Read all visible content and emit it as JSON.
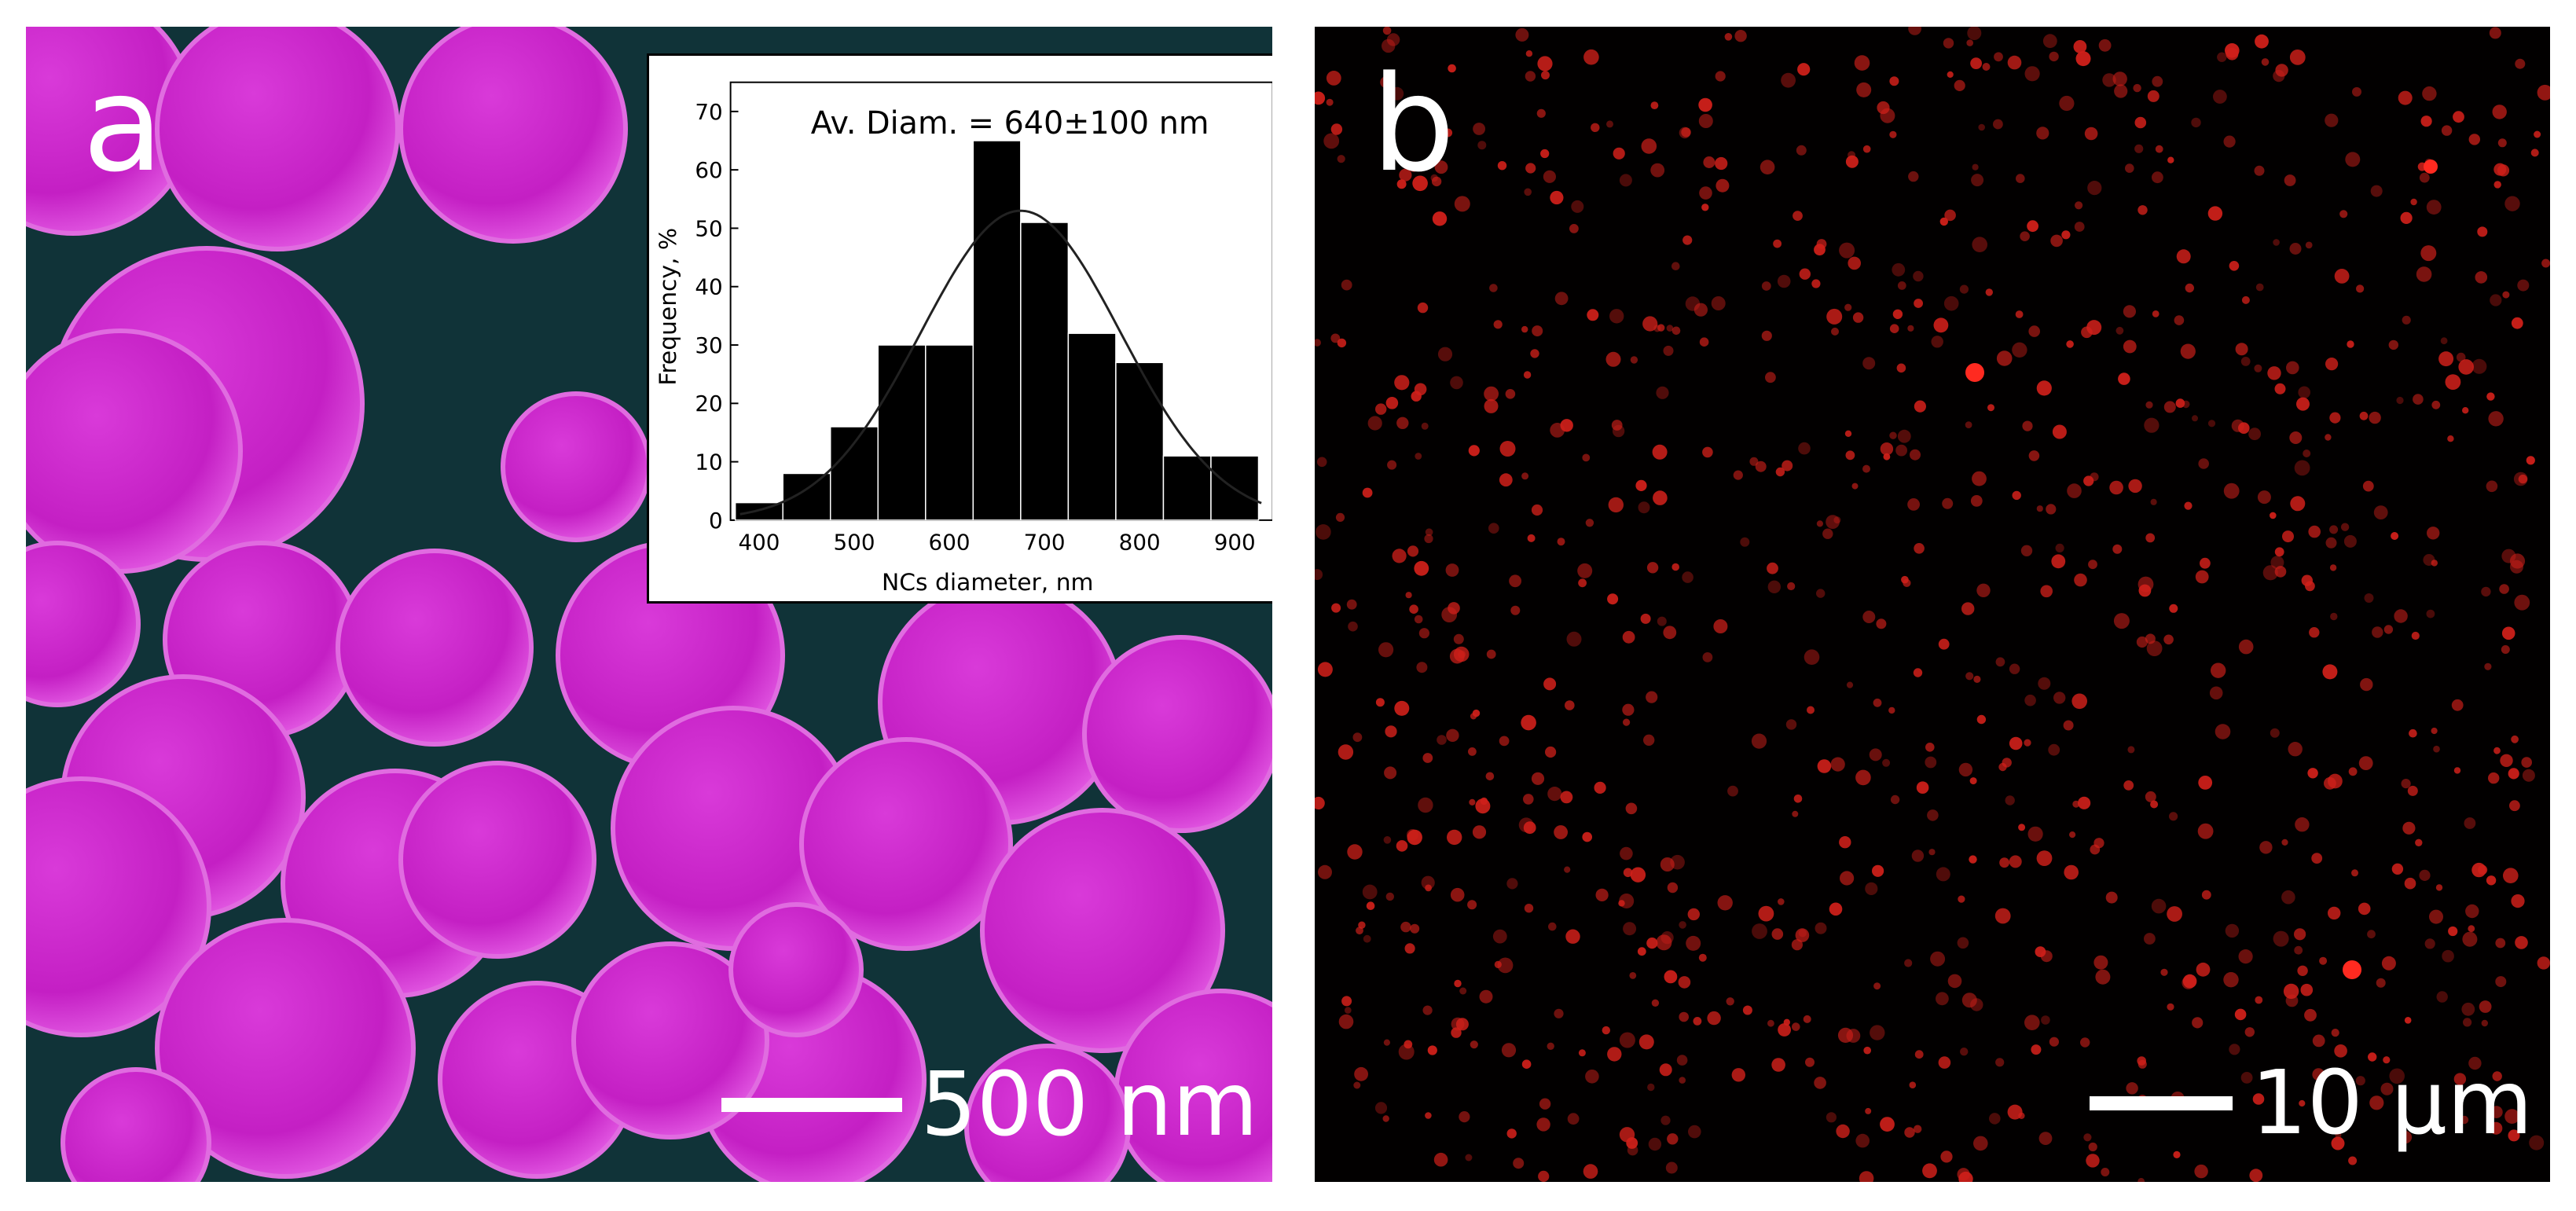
{
  "panel_a": {
    "letter": "a",
    "scale_bar": "500 nm",
    "colors": {
      "particle": "#c41fc4",
      "particle_light": "#e35ae3",
      "substrate": "#103338"
    }
  },
  "panel_b": {
    "letter": "b",
    "scale_bar": "10 μm",
    "colors": {
      "background": "#020000",
      "dot": "#d0201a"
    }
  },
  "chart_data": {
    "type": "bar",
    "annotation": "Av. Diam. = 640±100 nm",
    "xlabel": "NCs diameter, nm",
    "ylabel": "Frequency, %",
    "xlim": [
      370,
      940
    ],
    "ylim": [
      0,
      75
    ],
    "x_ticks": [
      400,
      500,
      600,
      700,
      800,
      900
    ],
    "y_ticks": [
      0,
      10,
      20,
      30,
      40,
      50,
      60,
      70
    ],
    "bin_width": 50,
    "bins": [
      400,
      450,
      500,
      550,
      600,
      650,
      700,
      750,
      800,
      850,
      900
    ],
    "values": [
      3,
      8,
      16,
      30,
      30,
      65,
      51,
      32,
      27,
      11,
      11
    ],
    "fit": {
      "type": "gaussian",
      "center": 675,
      "sigma": 105,
      "peak": 53
    }
  }
}
